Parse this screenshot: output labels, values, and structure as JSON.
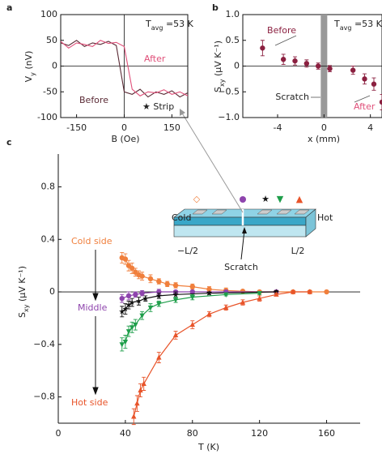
{
  "chart_data": [
    {
      "type": "line",
      "panel_label": "a",
      "frame": "box",
      "zero_lines": true,
      "x_label": "B (Oe)",
      "y_label": [
        "V",
        "y",
        " (nV)"
      ],
      "xlim": [
        -200,
        200
      ],
      "ylim": [
        -100,
        100
      ],
      "xticks": [
        -150,
        0,
        150
      ],
      "yticks": [
        -100,
        -50,
        0,
        50,
        100
      ],
      "x": [
        -200,
        -175,
        -150,
        -125,
        -100,
        -75,
        -50,
        -25,
        0,
        25,
        50,
        75,
        100,
        125,
        150,
        175,
        200
      ],
      "series": [
        {
          "name": "Before",
          "color": "#5a2a35",
          "values": [
            45,
            40,
            50,
            38,
            45,
            42,
            48,
            40,
            -50,
            -55,
            -45,
            -60,
            -50,
            -55,
            -48,
            -60,
            -52
          ]
        },
        {
          "name": "After",
          "color": "#e0507a",
          "values": [
            48,
            35,
            45,
            42,
            38,
            50,
            44,
            46,
            38,
            -45,
            -58,
            -50,
            -52,
            -46,
            -55,
            -50,
            -58
          ]
        }
      ],
      "annotations": [
        {
          "text": [
            "T",
            "avg",
            " =53 K"
          ],
          "color": "#222"
        },
        {
          "text": "★ Strip",
          "color": "#222"
        }
      ]
    },
    {
      "type": "scatter",
      "panel_label": "b",
      "frame": "box",
      "zero_lines": true,
      "x_label": "x (mm)",
      "y_label": [
        "S",
        "xy",
        " (μV K⁻¹)"
      ],
      "xlim": [
        -7,
        5
      ],
      "ylim": [
        -1,
        1
      ],
      "xticks": [
        -4,
        0,
        4
      ],
      "yticks": [
        {
          "value": -1,
          "label": "−1.0"
        },
        {
          "value": -0.5,
          "label": "−0.5"
        },
        0,
        {
          "value": 0.5,
          "label": "0.5"
        },
        {
          "value": 1,
          "label": "1.0"
        }
      ],
      "scratch_x": 0,
      "series": [
        {
          "color": "#8b2040",
          "marker": "circle",
          "x": [
            -5.3,
            -3.5,
            -2.5,
            -1.5,
            -0.5,
            0.5,
            2.5,
            3.5,
            4.3,
            5
          ],
          "values": [
            0.35,
            0.13,
            0.1,
            0.05,
            0,
            -0.05,
            -0.08,
            -0.25,
            -0.35,
            -0.7
          ],
          "errors": [
            0.15,
            0.1,
            0.08,
            0.07,
            0.06,
            0.06,
            0.08,
            0.1,
            0.12,
            0.15
          ]
        }
      ],
      "annotations": [
        {
          "text": [
            "T",
            "avg",
            " =53 K"
          ],
          "color": "#222"
        },
        {
          "text": "Before",
          "color": "#8b2040"
        },
        {
          "text": "Scratch",
          "color": "#222"
        },
        {
          "text": "After",
          "color": "#e0507a"
        }
      ]
    },
    {
      "type": "scatter",
      "panel_label": "c",
      "frame": "axes",
      "zero_lines": true,
      "x_label": "T (K)",
      "y_label": [
        "S",
        "xy",
        " (μV K⁻¹)"
      ],
      "xlim": [
        0,
        180
      ],
      "ylim": [
        -1.0,
        1.05
      ],
      "xticks": [
        0,
        40,
        80,
        120,
        160
      ],
      "yticks": [
        {
          "value": -0.8,
          "label": "−0.8"
        },
        {
          "value": -0.4,
          "label": "−0.4"
        },
        0,
        0.4,
        0.8
      ],
      "series": [
        {
          "color": "#f07f3c",
          "marker": "circle",
          "line": true,
          "x": [
            38,
            40,
            42,
            44,
            46,
            48,
            50,
            55,
            60,
            65,
            70,
            80,
            90,
            100,
            110,
            120,
            130,
            140,
            150,
            160
          ],
          "values": [
            0.26,
            0.25,
            0.2,
            0.18,
            0.15,
            0.13,
            0.12,
            0.1,
            0.08,
            0.06,
            0.05,
            0.04,
            0.02,
            0.01,
            0.005,
            0,
            0,
            0,
            0,
            0
          ],
          "errors": [
            0.04,
            0.04,
            0.04,
            0.04,
            0.03,
            0.03,
            0.03,
            0.03,
            0.02,
            0.02,
            0.02,
            0.02,
            0.02,
            0.02,
            0.01,
            0.01,
            0.01,
            0.01,
            0.01,
            0.01
          ]
        },
        {
          "color": "#8e44ad",
          "marker": "circle",
          "line": true,
          "x": [
            38,
            42,
            46,
            50,
            60,
            70,
            80,
            100,
            130
          ],
          "values": [
            -0.05,
            -0.03,
            -0.02,
            -0.01,
            0,
            0,
            0,
            0,
            0
          ],
          "errors": [
            0.03,
            0.03,
            0.02,
            0.02,
            0.02,
            0.01,
            0.01,
            0.01,
            0.01
          ]
        },
        {
          "color": "#111111",
          "marker": "star",
          "line": true,
          "x": [
            38,
            40,
            42,
            44,
            48,
            52,
            60,
            70,
            90,
            130
          ],
          "values": [
            -0.15,
            -0.13,
            -0.1,
            -0.08,
            -0.07,
            -0.05,
            -0.03,
            -0.02,
            -0.01,
            0
          ],
          "errors": [
            0.04,
            0.04,
            0.03,
            0.03,
            0.03,
            0.02,
            0.02,
            0.02,
            0.01,
            0.01
          ]
        },
        {
          "color": "#1e9e4a",
          "marker": "triangle-down",
          "line": true,
          "x": [
            38,
            40,
            42,
            44,
            46,
            50,
            55,
            60,
            70,
            80,
            100,
            120
          ],
          "values": [
            -0.4,
            -0.38,
            -0.3,
            -0.27,
            -0.25,
            -0.18,
            -0.12,
            -0.09,
            -0.06,
            -0.04,
            -0.02,
            -0.01
          ],
          "errors": [
            0.05,
            0.05,
            0.04,
            0.04,
            0.04,
            0.03,
            0.03,
            0.02,
            0.02,
            0.02,
            0.01,
            0.01
          ]
        },
        {
          "color": "#e8542a",
          "marker": "triangle-up",
          "line": true,
          "x": [
            45,
            47,
            49,
            51,
            60,
            70,
            80,
            90,
            100,
            110,
            120,
            130,
            140,
            150
          ],
          "values": [
            -0.95,
            -0.85,
            -0.75,
            -0.7,
            -0.5,
            -0.33,
            -0.25,
            -0.17,
            -0.12,
            -0.08,
            -0.05,
            -0.02,
            0,
            0
          ],
          "errors": [
            0.06,
            0.06,
            0.05,
            0.05,
            0.04,
            0.03,
            0.03,
            0.02,
            0.02,
            0.02,
            0.02,
            0.01,
            0.01,
            0.01
          ]
        }
      ],
      "annotations": [
        {
          "text": "Cold side",
          "color": "#f07f3c"
        },
        {
          "text": "Middle",
          "color": "#8e44ad"
        },
        {
          "text": "Hot side",
          "color": "#e8542a"
        },
        {
          "text": "Cold",
          "color": "#222"
        },
        {
          "text": "Hot",
          "color": "#222"
        },
        {
          "text": "−L/2",
          "color": "#222"
        },
        {
          "text": "L/2",
          "color": "#222"
        },
        {
          "text": "Scratch",
          "color": "#222"
        }
      ]
    }
  ]
}
